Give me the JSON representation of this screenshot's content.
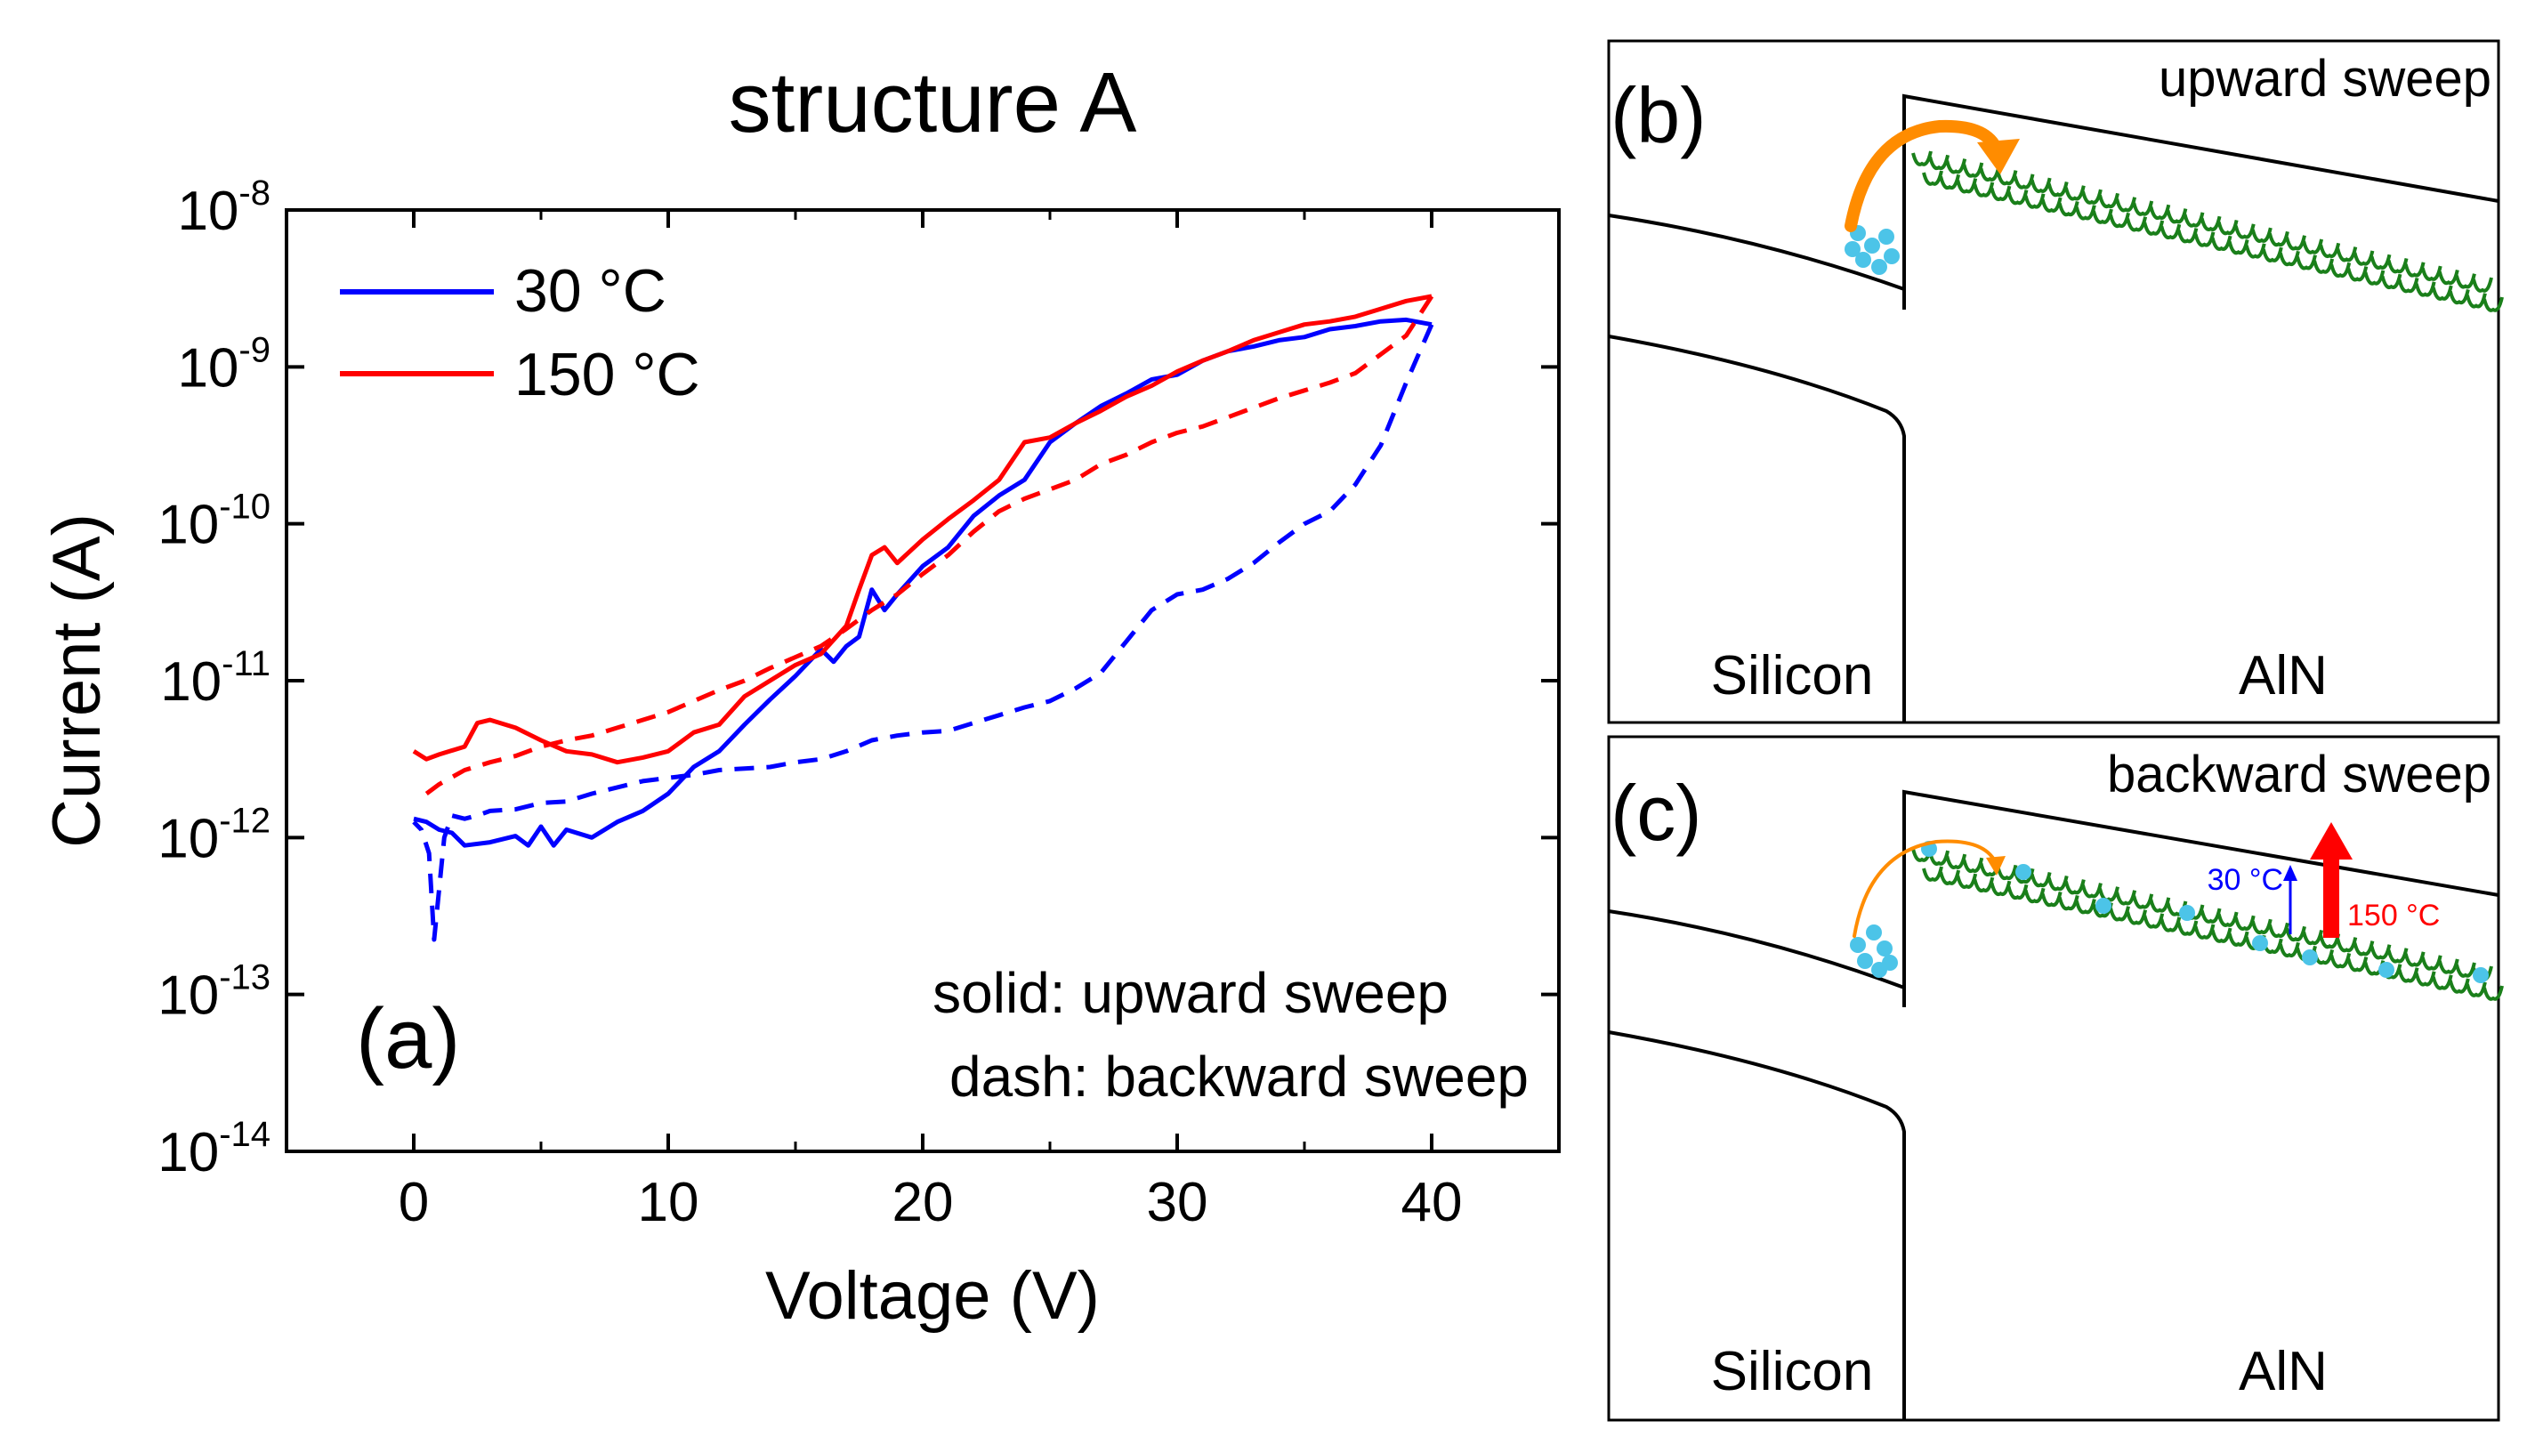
{
  "panel_a": {
    "label": "(a)",
    "title": "structure A",
    "xlabel": "Voltage (V)",
    "ylabel": "Current (A)",
    "legend": {
      "items": [
        {
          "label": "30 °C",
          "color": "#0000ff"
        },
        {
          "label": "150 °C",
          "color": "#ff0000"
        }
      ]
    },
    "note_solid": "solid: upward sweep",
    "note_dash": "dash: backward sweep"
  },
  "chart_data": {
    "type": "line",
    "title": "structure A",
    "xlabel": "Voltage (V)",
    "ylabel": "Current (A)",
    "xlim": [
      -5,
      45
    ],
    "ylim_log10": [
      -14,
      -8
    ],
    "yscale": "log",
    "x_ticks": [
      0,
      10,
      20,
      30,
      40
    ],
    "x_tick_labels": [
      "0",
      "10",
      "20",
      "30",
      "40"
    ],
    "y_ticks": [
      {
        "base": "10",
        "exp": "-8",
        "log": -8
      },
      {
        "base": "10",
        "exp": "-9",
        "log": -9
      },
      {
        "base": "10",
        "exp": "-10",
        "log": -10
      },
      {
        "base": "10",
        "exp": "-11",
        "log": -11
      },
      {
        "base": "10",
        "exp": "-12",
        "log": -12
      },
      {
        "base": "10",
        "exp": "-13",
        "log": -13
      },
      {
        "base": "10",
        "exp": "-14",
        "log": -14
      }
    ],
    "series": [
      {
        "name": "30 °C upward sweep",
        "color": "#0000ff",
        "style": "solid",
        "points": [
          [
            0,
            -11.88
          ],
          [
            0.5,
            -11.9
          ],
          [
            1,
            -11.95
          ],
          [
            1.5,
            -11.97
          ],
          [
            2,
            -12.05
          ],
          [
            3,
            -12.03
          ],
          [
            4,
            -11.99
          ],
          [
            4.5,
            -12.05
          ],
          [
            5,
            -11.93
          ],
          [
            5.5,
            -12.05
          ],
          [
            6,
            -11.95
          ],
          [
            7,
            -12.0
          ],
          [
            8,
            -11.9
          ],
          [
            9,
            -11.83
          ],
          [
            10,
            -11.72
          ],
          [
            11,
            -11.55
          ],
          [
            12,
            -11.45
          ],
          [
            13,
            -11.28
          ],
          [
            14,
            -11.12
          ],
          [
            15,
            -10.97
          ],
          [
            16,
            -10.8
          ],
          [
            16.5,
            -10.88
          ],
          [
            17,
            -10.78
          ],
          [
            17.5,
            -10.72
          ],
          [
            18,
            -10.42
          ],
          [
            18.5,
            -10.55
          ],
          [
            19,
            -10.45
          ],
          [
            20,
            -10.27
          ],
          [
            21,
            -10.15
          ],
          [
            22,
            -9.95
          ],
          [
            23,
            -9.82
          ],
          [
            24,
            -9.72
          ],
          [
            25,
            -9.48
          ],
          [
            26,
            -9.36
          ],
          [
            27,
            -9.25
          ],
          [
            28,
            -9.17
          ],
          [
            29,
            -9.08
          ],
          [
            30,
            -9.05
          ],
          [
            31,
            -8.96
          ],
          [
            32,
            -8.9
          ],
          [
            33,
            -8.87
          ],
          [
            34,
            -8.83
          ],
          [
            35,
            -8.81
          ],
          [
            36,
            -8.76
          ],
          [
            37,
            -8.74
          ],
          [
            38,
            -8.71
          ],
          [
            39,
            -8.7
          ],
          [
            40,
            -8.73
          ]
        ]
      },
      {
        "name": "30 °C backward sweep",
        "color": "#0000ff",
        "style": "dashed",
        "points": [
          [
            40,
            -8.73
          ],
          [
            39,
            -9.1
          ],
          [
            38,
            -9.5
          ],
          [
            37,
            -9.75
          ],
          [
            36,
            -9.92
          ],
          [
            35,
            -10.0
          ],
          [
            34,
            -10.12
          ],
          [
            33,
            -10.25
          ],
          [
            32,
            -10.35
          ],
          [
            31,
            -10.42
          ],
          [
            30,
            -10.45
          ],
          [
            29,
            -10.55
          ],
          [
            28,
            -10.75
          ],
          [
            27,
            -10.95
          ],
          [
            26,
            -11.05
          ],
          [
            25,
            -11.13
          ],
          [
            24,
            -11.17
          ],
          [
            23,
            -11.22
          ],
          [
            22,
            -11.27
          ],
          [
            21,
            -11.32
          ],
          [
            20,
            -11.33
          ],
          [
            19,
            -11.35
          ],
          [
            18,
            -11.38
          ],
          [
            17,
            -11.45
          ],
          [
            16,
            -11.5
          ],
          [
            15,
            -11.52
          ],
          [
            14,
            -11.55
          ],
          [
            13,
            -11.56
          ],
          [
            12,
            -11.57
          ],
          [
            11,
            -11.6
          ],
          [
            10,
            -11.62
          ],
          [
            9,
            -11.64
          ],
          [
            8,
            -11.68
          ],
          [
            7,
            -11.72
          ],
          [
            6,
            -11.77
          ],
          [
            5,
            -11.78
          ],
          [
            4,
            -11.82
          ],
          [
            3,
            -11.83
          ],
          [
            2.5,
            -11.86
          ],
          [
            2,
            -11.88
          ],
          [
            1.5,
            -11.86
          ],
          [
            1.2,
            -12.0
          ],
          [
            0.8,
            -12.65
          ],
          [
            0.6,
            -12.1
          ],
          [
            0.3,
            -11.95
          ],
          [
            0,
            -11.9
          ]
        ]
      },
      {
        "name": "150 °C upward sweep",
        "color": "#ff0000",
        "style": "solid",
        "points": [
          [
            0,
            -11.45
          ],
          [
            0.5,
            -11.5
          ],
          [
            1,
            -11.47
          ],
          [
            2,
            -11.42
          ],
          [
            2.5,
            -11.27
          ],
          [
            3,
            -11.25
          ],
          [
            4,
            -11.3
          ],
          [
            5,
            -11.38
          ],
          [
            6,
            -11.45
          ],
          [
            7,
            -11.47
          ],
          [
            8,
            -11.52
          ],
          [
            9,
            -11.49
          ],
          [
            10,
            -11.45
          ],
          [
            11,
            -11.33
          ],
          [
            12,
            -11.28
          ],
          [
            13,
            -11.1
          ],
          [
            14,
            -11.0
          ],
          [
            15,
            -10.9
          ],
          [
            16,
            -10.83
          ],
          [
            17,
            -10.65
          ],
          [
            17.5,
            -10.42
          ],
          [
            18,
            -10.2
          ],
          [
            18.5,
            -10.15
          ],
          [
            19,
            -10.25
          ],
          [
            20,
            -10.1
          ],
          [
            21,
            -9.97
          ],
          [
            22,
            -9.85
          ],
          [
            23,
            -9.72
          ],
          [
            24,
            -9.48
          ],
          [
            25,
            -9.45
          ],
          [
            26,
            -9.36
          ],
          [
            27,
            -9.28
          ],
          [
            28,
            -9.19
          ],
          [
            29,
            -9.12
          ],
          [
            30,
            -9.03
          ],
          [
            31,
            -8.96
          ],
          [
            32,
            -8.9
          ],
          [
            33,
            -8.83
          ],
          [
            34,
            -8.78
          ],
          [
            35,
            -8.73
          ],
          [
            36,
            -8.71
          ],
          [
            37,
            -8.68
          ],
          [
            38,
            -8.63
          ],
          [
            39,
            -8.58
          ],
          [
            40,
            -8.55
          ]
        ]
      },
      {
        "name": "150 °C backward sweep",
        "color": "#ff0000",
        "style": "dashed",
        "points": [
          [
            40,
            -8.55
          ],
          [
            39,
            -8.8
          ],
          [
            38,
            -8.92
          ],
          [
            37,
            -9.04
          ],
          [
            36,
            -9.1
          ],
          [
            35,
            -9.15
          ],
          [
            34,
            -9.2
          ],
          [
            33,
            -9.26
          ],
          [
            32,
            -9.32
          ],
          [
            31,
            -9.38
          ],
          [
            30,
            -9.42
          ],
          [
            29,
            -9.48
          ],
          [
            28,
            -9.56
          ],
          [
            27,
            -9.62
          ],
          [
            26,
            -9.72
          ],
          [
            25,
            -9.78
          ],
          [
            24,
            -9.84
          ],
          [
            23,
            -9.92
          ],
          [
            22,
            -10.05
          ],
          [
            21,
            -10.2
          ],
          [
            20,
            -10.32
          ],
          [
            19,
            -10.45
          ],
          [
            18,
            -10.55
          ],
          [
            17,
            -10.67
          ],
          [
            16,
            -10.78
          ],
          [
            15,
            -10.85
          ],
          [
            14,
            -10.92
          ],
          [
            13,
            -11.0
          ],
          [
            12,
            -11.06
          ],
          [
            11,
            -11.13
          ],
          [
            10,
            -11.2
          ],
          [
            9,
            -11.25
          ],
          [
            8,
            -11.3
          ],
          [
            7,
            -11.35
          ],
          [
            6,
            -11.38
          ],
          [
            5,
            -11.42
          ],
          [
            4,
            -11.48
          ],
          [
            3,
            -11.52
          ],
          [
            2,
            -11.57
          ],
          [
            1,
            -11.66
          ],
          [
            0.5,
            -11.72
          ]
        ]
      }
    ]
  },
  "panel_b": {
    "label": "(b)",
    "title": "upward sweep",
    "left_material": "Silicon",
    "right_material": "AlN"
  },
  "panel_c": {
    "label": "(c)",
    "title": "backward sweep",
    "left_material": "Silicon",
    "right_material": "AlN",
    "arrow_30": "30 °C",
    "arrow_150": "150 °C",
    "color_30": "#0000ff",
    "color_150": "#ff0000"
  },
  "colors": {
    "orange": "#ff8c00",
    "trap_green": "#1a7f1a",
    "electron": "#4cc4e8"
  }
}
